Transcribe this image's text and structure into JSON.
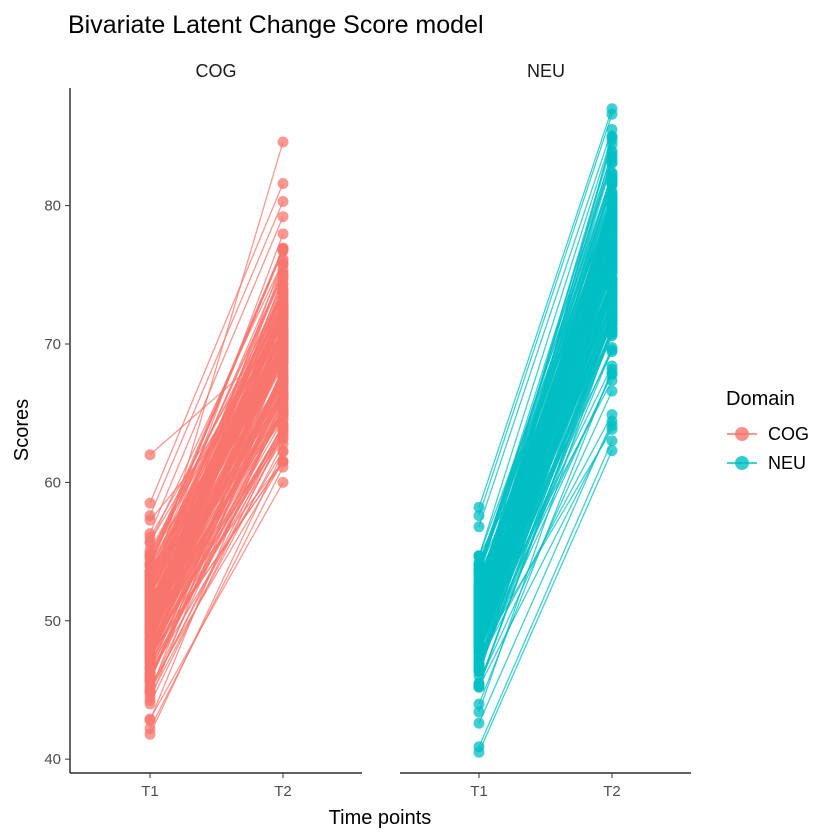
{
  "chart_data": {
    "type": "line",
    "title": "Bivariate Latent Change Score model",
    "xlabel": "Time points",
    "ylabel": "Scores",
    "x_categories": [
      "T1",
      "T2"
    ],
    "y_ticks": [
      40,
      50,
      60,
      70,
      80
    ],
    "ylim": [
      39,
      88.5
    ],
    "grid": false,
    "facets": [
      {
        "label": "COG",
        "color": "#F8766D",
        "t1_range": [
          41.8,
          62.0
        ],
        "t1_mean": 50.2,
        "t2_range": [
          60.0,
          84.6
        ],
        "t2_mean": 69.5,
        "highlighted_trajectories": [
          [
            62.0,
            70.4
          ],
          [
            58.5,
            81.6
          ],
          [
            57.6,
            80.3
          ],
          [
            56.3,
            79.2
          ],
          [
            44.0,
            63.7
          ],
          [
            42.9,
            60.0
          ],
          [
            42.2,
            61.1
          ],
          [
            41.8,
            62.2
          ],
          [
            52.1,
            84.6
          ]
        ]
      },
      {
        "label": "NEU",
        "color": "#00BFC4",
        "t1_range": [
          40.5,
          58.2
        ],
        "t1_mean": 50.0,
        "t2_range": [
          62.3,
          87.0
        ],
        "t2_mean": 76.0,
        "highlighted_trajectories": [
          [
            40.5,
            62.3
          ],
          [
            40.9,
            63.0
          ],
          [
            42.6,
            64.4
          ],
          [
            58.2,
            87.0
          ],
          [
            57.6,
            86.6
          ],
          [
            56.8,
            85.5
          ],
          [
            47.0,
            64.9
          ],
          [
            45.2,
            64.1
          ]
        ]
      }
    ],
    "legend": {
      "title": "Domain",
      "position": "right",
      "entries": [
        "COG",
        "NEU"
      ]
    }
  }
}
